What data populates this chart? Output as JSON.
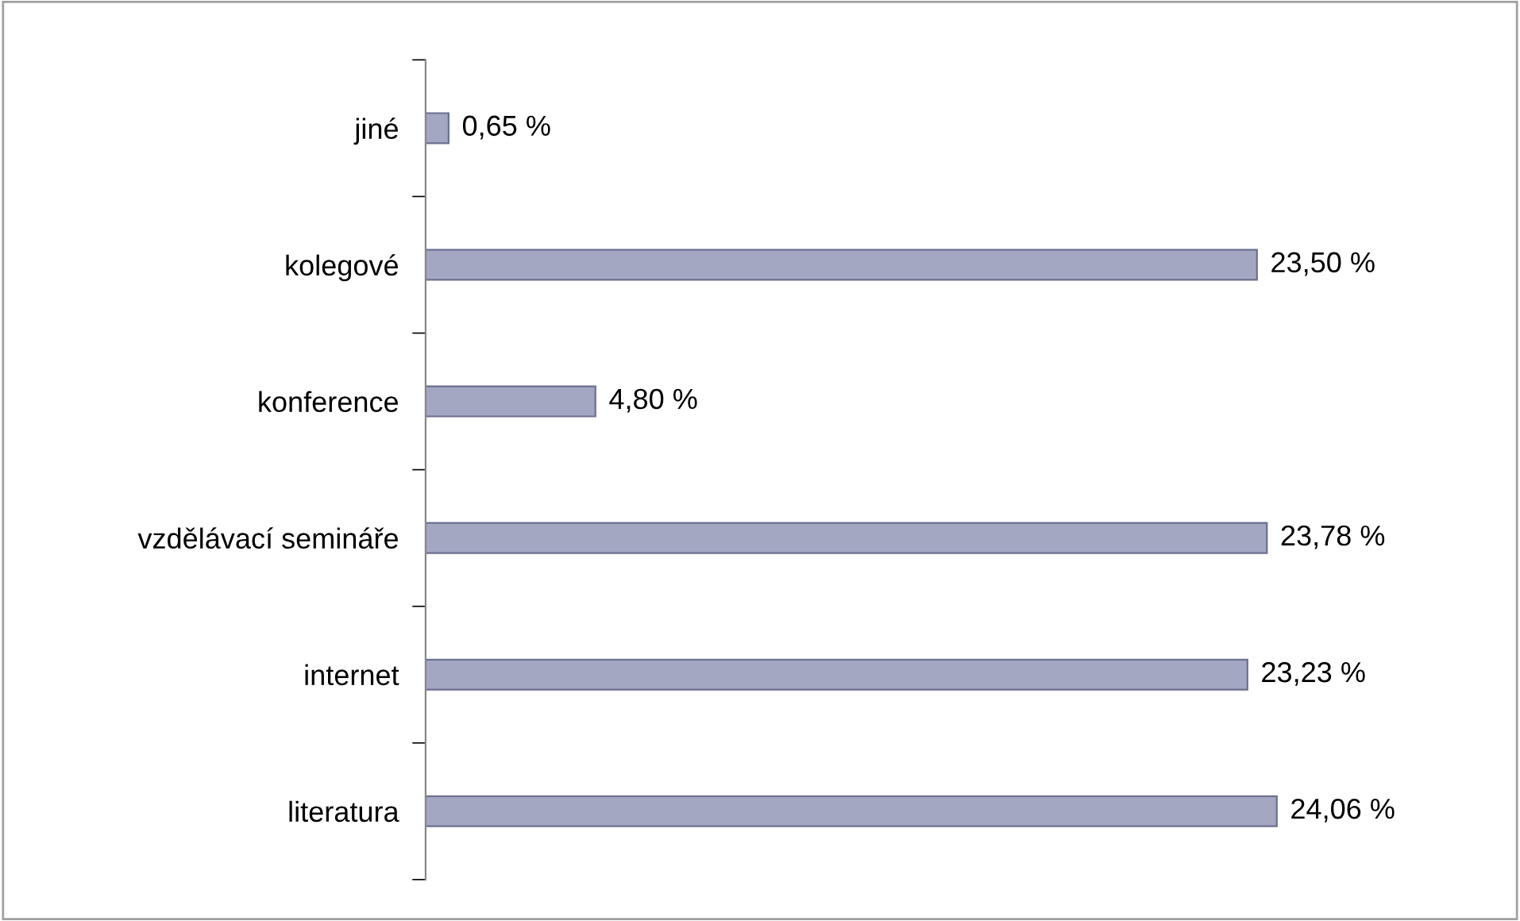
{
  "chart_data": {
    "type": "bar",
    "orientation": "horizontal",
    "categories": [
      "jiné",
      "kolegové",
      "konference",
      "vzdělávací semináře",
      "internet",
      "literatura"
    ],
    "values": [
      0.65,
      23.5,
      4.8,
      23.78,
      23.23,
      24.06
    ],
    "value_labels": [
      "0,65 %",
      "23,50 %",
      "4,80 %",
      "23,78 %",
      "23,23 %",
      "24,06 %"
    ],
    "color": "#a3a7c2",
    "grid": false,
    "legend": false
  }
}
